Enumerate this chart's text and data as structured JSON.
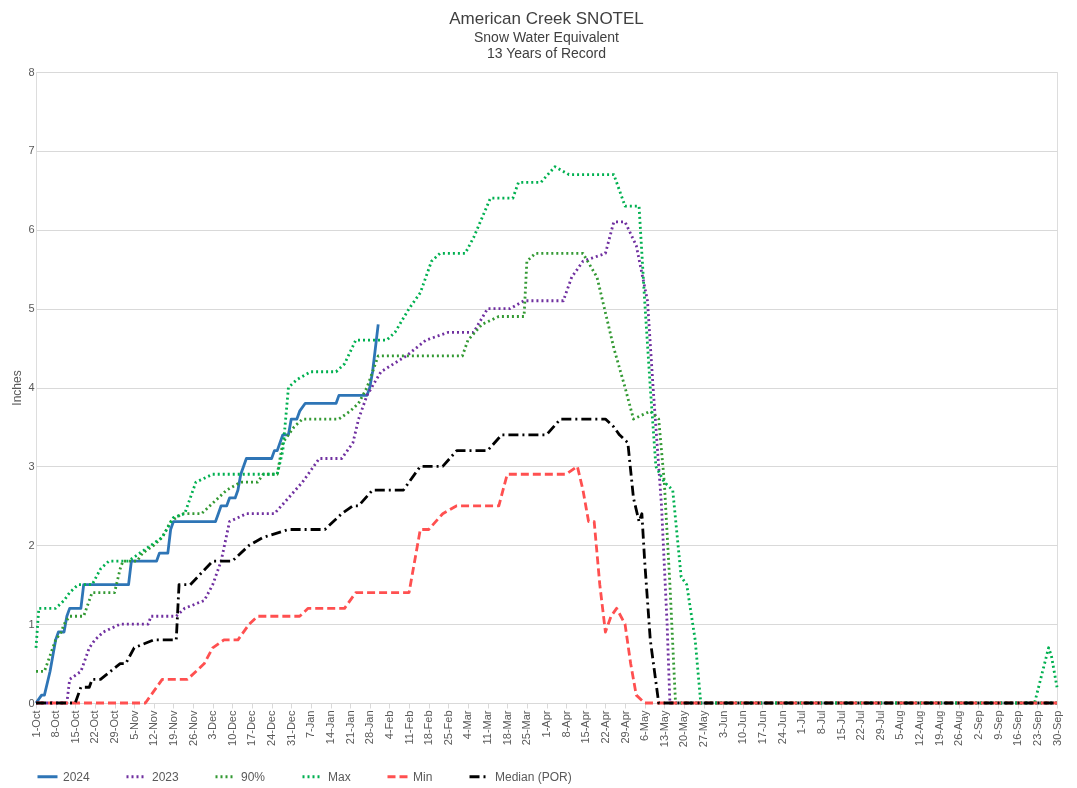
{
  "chart_data": {
    "type": "line",
    "title": "American Creek SNOTEL",
    "subtitle": "Snow Water Equivalent\n13 Years of Record",
    "ylabel": "Inches",
    "ylim": [
      0,
      8
    ],
    "yticks": [
      0,
      1,
      2,
      3,
      4,
      5,
      6,
      7,
      8
    ],
    "xlim": [
      "2022-10-01",
      "2023-09-30"
    ],
    "xticks": [
      {
        "value": "2022-10-01",
        "label": "1-Oct"
      },
      {
        "value": "2022-10-08",
        "label": "8-Oct"
      },
      {
        "value": "2022-10-15",
        "label": "15-Oct"
      },
      {
        "value": "2022-10-22",
        "label": "22-Oct"
      },
      {
        "value": "2022-10-29",
        "label": "29-Oct"
      },
      {
        "value": "2022-11-05",
        "label": "5-Nov"
      },
      {
        "value": "2022-11-12",
        "label": "12-Nov"
      },
      {
        "value": "2022-11-19",
        "label": "19-Nov"
      },
      {
        "value": "2022-11-26",
        "label": "26-Nov"
      },
      {
        "value": "2022-12-03",
        "label": "3-Dec"
      },
      {
        "value": "2022-12-10",
        "label": "10-Dec"
      },
      {
        "value": "2022-12-17",
        "label": "17-Dec"
      },
      {
        "value": "2022-12-24",
        "label": "24-Dec"
      },
      {
        "value": "2022-12-31",
        "label": "31-Dec"
      },
      {
        "value": "2023-01-07",
        "label": "7-Jan"
      },
      {
        "value": "2023-01-14",
        "label": "14-Jan"
      },
      {
        "value": "2023-01-21",
        "label": "21-Jan"
      },
      {
        "value": "2023-01-28",
        "label": "28-Jan"
      },
      {
        "value": "2023-02-04",
        "label": "4-Feb"
      },
      {
        "value": "2023-02-11",
        "label": "11-Feb"
      },
      {
        "value": "2023-02-18",
        "label": "18-Feb"
      },
      {
        "value": "2023-02-25",
        "label": "25-Feb"
      },
      {
        "value": "2023-03-04",
        "label": "4-Mar"
      },
      {
        "value": "2023-03-11",
        "label": "11-Mar"
      },
      {
        "value": "2023-03-18",
        "label": "18-Mar"
      },
      {
        "value": "2023-03-25",
        "label": "25-Mar"
      },
      {
        "value": "2023-04-01",
        "label": "1-Apr"
      },
      {
        "value": "2023-04-08",
        "label": "8-Apr"
      },
      {
        "value": "2023-04-15",
        "label": "15-Apr"
      },
      {
        "value": "2023-04-22",
        "label": "22-Apr"
      },
      {
        "value": "2023-04-29",
        "label": "29-Apr"
      },
      {
        "value": "2023-05-06",
        "label": "6-May"
      },
      {
        "value": "2023-05-13",
        "label": "13-May"
      },
      {
        "value": "2023-05-20",
        "label": "20-May"
      },
      {
        "value": "2023-05-27",
        "label": "27-May"
      },
      {
        "value": "2023-06-03",
        "label": "3-Jun"
      },
      {
        "value": "2023-06-10",
        "label": "10-Jun"
      },
      {
        "value": "2023-06-17",
        "label": "17-Jun"
      },
      {
        "value": "2023-06-24",
        "label": "24-Jun"
      },
      {
        "value": "2023-07-01",
        "label": "1-Jul"
      },
      {
        "value": "2023-07-08",
        "label": "8-Jul"
      },
      {
        "value": "2023-07-15",
        "label": "15-Jul"
      },
      {
        "value": "2023-07-22",
        "label": "22-Jul"
      },
      {
        "value": "2023-07-29",
        "label": "29-Jul"
      },
      {
        "value": "2023-08-05",
        "label": "5-Aug"
      },
      {
        "value": "2023-08-12",
        "label": "12-Aug"
      },
      {
        "value": "2023-08-19",
        "label": "19-Aug"
      },
      {
        "value": "2023-08-26",
        "label": "26-Aug"
      },
      {
        "value": "2023-09-02",
        "label": "2-Sep"
      },
      {
        "value": "2023-09-09",
        "label": "9-Sep"
      },
      {
        "value": "2023-09-16",
        "label": "16-Sep"
      },
      {
        "value": "2023-09-23",
        "label": "23-Sep"
      },
      {
        "value": "2023-09-30",
        "label": "30-Sep"
      }
    ],
    "grid": "y",
    "legend": "bottom",
    "marker": "none",
    "series": [
      {
        "name": "2024",
        "color": "#2e75b6",
        "line_style": "solid",
        "x": [
          "2022-10-01",
          "2022-10-03",
          "2022-10-04",
          "2022-10-06",
          "2022-10-07",
          "2022-10-08",
          "2022-10-09",
          "2022-10-11",
          "2022-10-12",
          "2022-10-13",
          "2022-10-17",
          "2022-10-18",
          "2022-11-03",
          "2022-11-04",
          "2022-11-13",
          "2022-11-14",
          "2022-11-17",
          "2022-11-18",
          "2022-11-19",
          "2022-12-04",
          "2022-12-05",
          "2022-12-06",
          "2022-12-08",
          "2022-12-09",
          "2022-12-11",
          "2022-12-12",
          "2022-12-13",
          "2022-12-15",
          "2022-12-24",
          "2022-12-25",
          "2022-12-26",
          "2022-12-28",
          "2022-12-30",
          "2022-12-31",
          "2023-01-02",
          "2023-01-03",
          "2023-01-05",
          "2023-01-16",
          "2023-01-17",
          "2023-01-27",
          "2023-01-28",
          "2023-01-29",
          "2023-01-30",
          "2023-01-31"
        ],
        "values": [
          0,
          0.1,
          0.1,
          0.4,
          0.6,
          0.8,
          0.9,
          0.9,
          1.1,
          1.2,
          1.2,
          1.5,
          1.5,
          1.8,
          1.8,
          1.9,
          1.9,
          2.2,
          2.3,
          2.3,
          2.4,
          2.5,
          2.5,
          2.6,
          2.6,
          2.7,
          2.9,
          3.1,
          3.1,
          3.2,
          3.2,
          3.4,
          3.4,
          3.6,
          3.6,
          3.7,
          3.8,
          3.8,
          3.9,
          3.9,
          4.0,
          4.2,
          4.5,
          4.8
        ]
      },
      {
        "name": "2023",
        "color": "#7030a0",
        "line_style": "dotted",
        "x": [
          "2022-10-01",
          "2022-10-12",
          "2022-10-13",
          "2022-10-17",
          "2022-10-20",
          "2022-10-22",
          "2022-10-25",
          "2022-10-31",
          "2022-11-10",
          "2022-11-11",
          "2022-11-20",
          "2022-11-23",
          "2022-11-30",
          "2022-12-03",
          "2022-12-06",
          "2022-12-09",
          "2022-12-15",
          "2022-12-25",
          "2022-12-30",
          "2023-01-04",
          "2023-01-10",
          "2023-01-18",
          "2023-01-20",
          "2023-01-22",
          "2023-01-24",
          "2023-01-27",
          "2023-02-01",
          "2023-02-10",
          "2023-02-17",
          "2023-02-25",
          "2023-03-06",
          "2023-03-11",
          "2023-03-19",
          "2023-03-24",
          "2023-04-07",
          "2023-04-10",
          "2023-04-14",
          "2023-04-22",
          "2023-04-25",
          "2023-04-29",
          "2023-05-03",
          "2023-05-07",
          "2023-05-09",
          "2023-05-12",
          "2023-05-14",
          "2023-05-15",
          "2023-09-30"
        ],
        "values": [
          0,
          0,
          0.3,
          0.4,
          0.7,
          0.8,
          0.9,
          1.0,
          1.0,
          1.1,
          1.1,
          1.2,
          1.3,
          1.5,
          1.8,
          2.3,
          2.4,
          2.4,
          2.6,
          2.8,
          3.1,
          3.1,
          3.2,
          3.3,
          3.6,
          3.9,
          4.2,
          4.4,
          4.6,
          4.7,
          4.7,
          5.0,
          5.0,
          5.1,
          5.1,
          5.4,
          5.6,
          5.7,
          6.1,
          6.1,
          5.8,
          5.1,
          4.0,
          2.5,
          1.0,
          0,
          0
        ]
      },
      {
        "name": "90%",
        "color": "#339933",
        "line_style": "dotted",
        "x": [
          "2022-10-01",
          "2022-10-04",
          "2022-10-06",
          "2022-10-08",
          "2022-10-10",
          "2022-10-11",
          "2022-10-13",
          "2022-10-18",
          "2022-10-21",
          "2022-10-29",
          "2022-10-31",
          "2022-11-01",
          "2022-11-06",
          "2022-11-08",
          "2022-11-12",
          "2022-11-15",
          "2022-11-18",
          "2022-11-22",
          "2022-11-29",
          "2022-12-02",
          "2022-12-08",
          "2022-12-13",
          "2022-12-19",
          "2022-12-21",
          "2022-12-26",
          "2022-12-28",
          "2023-01-01",
          "2023-01-04",
          "2023-01-17",
          "2023-01-21",
          "2023-01-24",
          "2023-01-27",
          "2023-01-31",
          "2023-03-02",
          "2023-03-04",
          "2023-03-09",
          "2023-03-15",
          "2023-03-24",
          "2023-03-25",
          "2023-03-28",
          "2023-04-14",
          "2023-04-19",
          "2023-04-25",
          "2023-04-29",
          "2023-05-02",
          "2023-05-08",
          "2023-05-11",
          "2023-05-13",
          "2023-05-15",
          "2023-05-17",
          "2023-09-30"
        ],
        "values": [
          0.4,
          0.4,
          0.6,
          0.8,
          0.9,
          1.0,
          1.1,
          1.1,
          1.4,
          1.4,
          1.7,
          1.8,
          1.8,
          1.9,
          2.0,
          2.1,
          2.3,
          2.4,
          2.4,
          2.5,
          2.7,
          2.8,
          2.8,
          2.9,
          2.9,
          3.3,
          3.5,
          3.6,
          3.6,
          3.7,
          3.8,
          4.0,
          4.4,
          4.4,
          4.6,
          4.8,
          4.9,
          4.9,
          5.6,
          5.7,
          5.7,
          5.4,
          4.5,
          4.0,
          3.6,
          3.7,
          3.6,
          2.8,
          1.5,
          0,
          0
        ]
      },
      {
        "name": "Max",
        "color": "#00b050",
        "line_style": "dotted",
        "x": [
          "2022-10-01",
          "2022-10-02",
          "2022-10-08",
          "2022-10-11",
          "2022-10-13",
          "2022-10-16",
          "2022-10-21",
          "2022-10-24",
          "2022-10-27",
          "2022-11-03",
          "2022-11-07",
          "2022-11-11",
          "2022-11-15",
          "2022-11-19",
          "2022-11-23",
          "2022-11-27",
          "2022-12-03",
          "2022-12-26",
          "2022-12-28",
          "2022-12-30",
          "2023-01-02",
          "2023-01-07",
          "2023-01-16",
          "2023-01-19",
          "2023-01-23",
          "2023-02-03",
          "2023-02-06",
          "2023-02-11",
          "2023-02-15",
          "2023-02-19",
          "2023-02-22",
          "2023-03-03",
          "2023-03-06",
          "2023-03-12",
          "2023-03-20",
          "2023-03-22",
          "2023-03-30",
          "2023-04-04",
          "2023-04-09",
          "2023-04-25",
          "2023-04-29",
          "2023-05-04",
          "2023-05-06",
          "2023-05-08",
          "2023-05-10",
          "2023-05-13",
          "2023-05-16",
          "2023-05-19",
          "2023-05-21",
          "2023-05-24",
          "2023-05-26",
          "2023-09-22",
          "2023-09-27",
          "2023-09-28",
          "2023-09-30"
        ],
        "values": [
          0.7,
          1.2,
          1.2,
          1.3,
          1.4,
          1.5,
          1.5,
          1.7,
          1.8,
          1.8,
          1.9,
          2.0,
          2.1,
          2.35,
          2.4,
          2.8,
          2.9,
          2.9,
          3.2,
          4.0,
          4.1,
          4.2,
          4.2,
          4.3,
          4.6,
          4.6,
          4.7,
          5.0,
          5.2,
          5.6,
          5.7,
          5.7,
          5.9,
          6.4,
          6.4,
          6.6,
          6.6,
          6.8,
          6.7,
          6.7,
          6.3,
          6.3,
          5.1,
          4.0,
          3.0,
          2.8,
          2.7,
          1.6,
          1.5,
          0.8,
          0,
          0,
          0.7,
          0.6,
          0.2
        ]
      },
      {
        "name": "Min",
        "color": "#ff5050",
        "line_style": "dashed",
        "x": [
          "2022-10-01",
          "2022-11-09",
          "2022-11-15",
          "2022-11-24",
          "2022-11-30",
          "2022-12-03",
          "2022-12-07",
          "2022-12-12",
          "2022-12-16",
          "2022-12-19",
          "2023-01-03",
          "2023-01-06",
          "2023-01-19",
          "2023-01-23",
          "2023-02-11",
          "2023-02-15",
          "2023-02-18",
          "2023-02-23",
          "2023-02-28",
          "2023-03-15",
          "2023-03-18",
          "2023-04-08",
          "2023-04-12",
          "2023-04-14",
          "2023-04-16",
          "2023-04-18",
          "2023-04-20",
          "2023-04-22",
          "2023-04-24",
          "2023-04-26",
          "2023-04-29",
          "2023-05-01",
          "2023-05-03",
          "2023-05-06",
          "2023-09-30"
        ],
        "values": [
          0,
          0,
          0.3,
          0.3,
          0.5,
          0.7,
          0.8,
          0.8,
          1.0,
          1.1,
          1.1,
          1.2,
          1.2,
          1.4,
          1.4,
          2.2,
          2.2,
          2.4,
          2.5,
          2.5,
          2.9,
          2.9,
          3.0,
          2.7,
          2.3,
          2.3,
          1.5,
          0.9,
          1.1,
          1.2,
          1.0,
          0.5,
          0.1,
          0,
          0
        ]
      },
      {
        "name": "Median (POR)",
        "color": "#000000",
        "line_style": "dashdot",
        "x": [
          "2022-10-01",
          "2022-10-15",
          "2022-10-17",
          "2022-10-20",
          "2022-10-21",
          "2022-10-24",
          "2022-10-31",
          "2022-11-02",
          "2022-11-05",
          "2022-11-12",
          "2022-11-20",
          "2022-11-21",
          "2022-11-25",
          "2022-12-03",
          "2022-12-10",
          "2022-12-16",
          "2022-12-21",
          "2022-12-30",
          "2023-01-12",
          "2023-01-18",
          "2023-01-22",
          "2023-01-24",
          "2023-01-29",
          "2023-02-09",
          "2023-02-15",
          "2023-02-23",
          "2023-02-28",
          "2023-03-11",
          "2023-03-16",
          "2023-04-01",
          "2023-04-06",
          "2023-04-22",
          "2023-04-25",
          "2023-04-27",
          "2023-04-30",
          "2023-05-02",
          "2023-05-04",
          "2023-05-05",
          "2023-05-06",
          "2023-05-08",
          "2023-05-11",
          "2023-09-30"
        ],
        "values": [
          0,
          0,
          0.2,
          0.2,
          0.3,
          0.3,
          0.5,
          0.5,
          0.7,
          0.8,
          0.8,
          1.5,
          1.5,
          1.8,
          1.8,
          2.0,
          2.1,
          2.2,
          2.2,
          2.4,
          2.5,
          2.5,
          2.7,
          2.7,
          3.0,
          3.0,
          3.2,
          3.2,
          3.4,
          3.4,
          3.6,
          3.6,
          3.5,
          3.4,
          3.3,
          2.6,
          2.3,
          2.4,
          1.8,
          0.8,
          0,
          0
        ]
      }
    ]
  }
}
